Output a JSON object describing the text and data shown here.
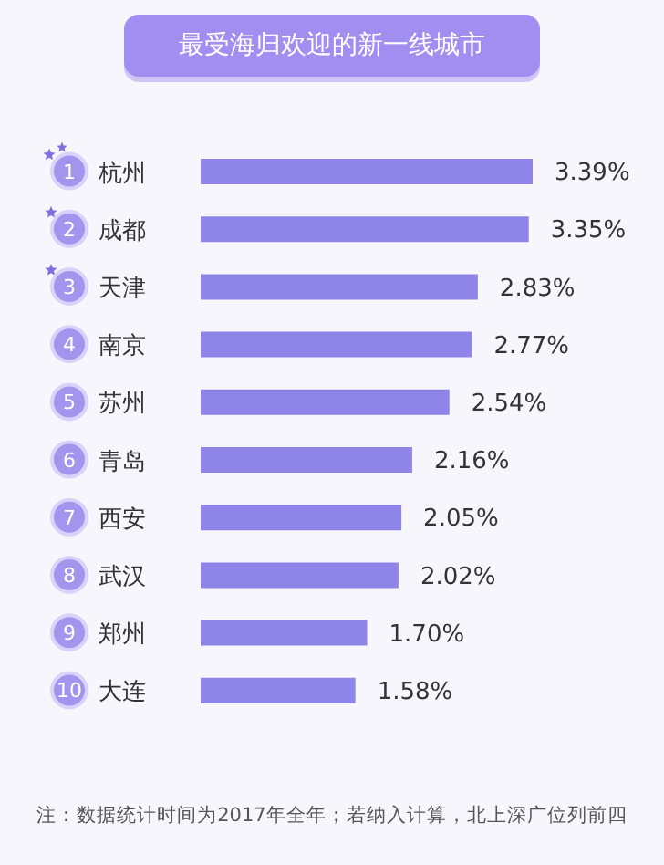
{
  "chart_data": {
    "type": "bar",
    "orientation": "horizontal",
    "title": "最受海归欢迎的新一线城市",
    "categories": [
      "1 杭州",
      "2 成都",
      "3 天津",
      "4 南京",
      "5 苏州",
      "6 青岛",
      "7 西安",
      "8 武汉",
      "9 郑州",
      "10 大连"
    ],
    "values": [
      3.39,
      3.35,
      2.83,
      2.77,
      2.54,
      2.16,
      2.05,
      2.02,
      1.7,
      1.58
    ],
    "value_labels": [
      "3.39%",
      "3.35%",
      "2.83%",
      "2.77%",
      "2.54%",
      "2.16%",
      "2.05%",
      "2.02%",
      "1.70%",
      "1.58%"
    ],
    "color": "#8f84e8",
    "tick_labels": "y",
    "grid": false,
    "legend": false,
    "annotations": [
      "注：数据统计时间为2017年全年；若纳入计算，北上深广位列前四"
    ]
  }
}
